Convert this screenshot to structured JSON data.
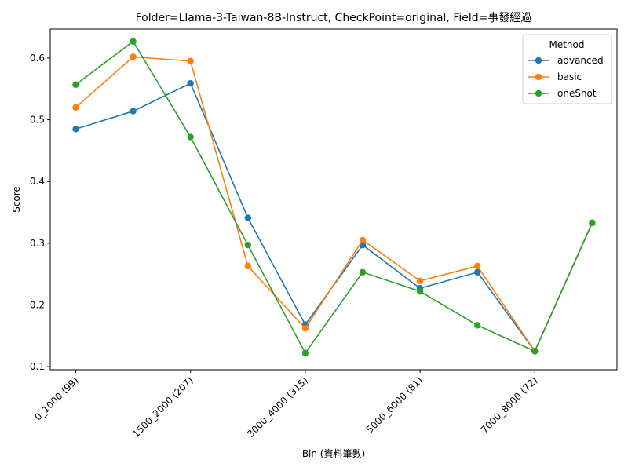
{
  "chart_data": {
    "type": "line",
    "title": "Folder=Llama-3-Taiwan-8B-Instruct, CheckPoint=original, Field=事發經過",
    "xlabel": "Bin (資料筆數)",
    "ylabel": "Score",
    "ylim": [
      0.095,
      0.647
    ],
    "y_ticks": [
      0.1,
      0.2,
      0.3,
      0.4,
      0.5,
      0.6
    ],
    "y_tick_labels": [
      "0.1",
      "0.2",
      "0.3",
      "0.4",
      "0.5",
      "0.6"
    ],
    "x_tick_labels": [
      "0_1000 (99)",
      "1500_2000 (207)",
      "3000_4000 (315)",
      "5000_6000 (81)",
      "7000_8000 (72)"
    ],
    "x_tick_positions": [
      0,
      2,
      4,
      6,
      8
    ],
    "num_points": 10,
    "grid": false,
    "legend": {
      "title": "Method",
      "position": "top-right"
    },
    "series": [
      {
        "name": "advanced",
        "color": "#1f77b4",
        "values": [
          0.485,
          0.514,
          0.559,
          0.341,
          0.168,
          0.297,
          0.227,
          0.253,
          0.125,
          0.333
        ]
      },
      {
        "name": "basic",
        "color": "#ff7f0e",
        "values": [
          0.52,
          0.602,
          0.595,
          0.263,
          0.162,
          0.305,
          0.239,
          0.263,
          0.125,
          0.333
        ]
      },
      {
        "name": "oneShot",
        "color": "#2ca02c",
        "values": [
          0.557,
          0.627,
          0.472,
          0.297,
          0.122,
          0.253,
          0.222,
          0.167,
          0.125,
          0.333
        ]
      }
    ]
  }
}
